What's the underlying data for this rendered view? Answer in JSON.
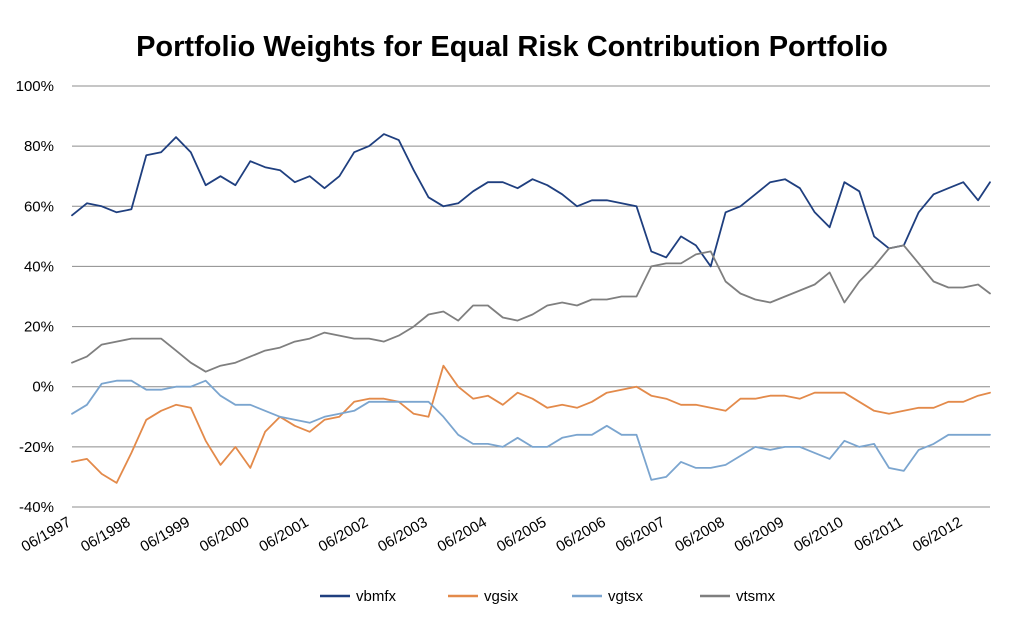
{
  "chart_data": {
    "type": "line",
    "title": "Portfolio Weights for Equal Risk Contribution Portfolio",
    "xlabel": "",
    "ylabel": "",
    "ylim": [
      -40,
      100
    ],
    "ytick_values": [
      -40,
      -20,
      0,
      20,
      40,
      60,
      80,
      100
    ],
    "ytick_labels": [
      "-40%",
      "-20%",
      "0%",
      "20%",
      "40%",
      "60%",
      "80%",
      "100%"
    ],
    "xlim": [
      1997.5,
      2012.95
    ],
    "xtick_values": [
      1997.5,
      1998.5,
      1999.5,
      2000.5,
      2001.5,
      2002.5,
      2003.5,
      2004.5,
      2005.5,
      2006.5,
      2007.5,
      2008.5,
      2009.5,
      2010.5,
      2011.5,
      2012.5
    ],
    "xtick_labels": [
      "06/1997",
      "06/1998",
      "06/1999",
      "06/2000",
      "06/2001",
      "06/2002",
      "06/2003",
      "06/2004",
      "06/2005",
      "06/2006",
      "06/2007",
      "06/2008",
      "06/2009",
      "06/2010",
      "06/2011",
      "06/2012"
    ],
    "grid": true,
    "legend_position": "bottom",
    "x": [
      1997.5,
      1997.75,
      1998.0,
      1998.25,
      1998.5,
      1998.75,
      1999.0,
      1999.25,
      1999.5,
      1999.75,
      2000.0,
      2000.25,
      2000.5,
      2000.75,
      2001.0,
      2001.25,
      2001.5,
      2001.75,
      2002.0,
      2002.25,
      2002.5,
      2002.75,
      2003.0,
      2003.25,
      2003.5,
      2003.75,
      2004.0,
      2004.25,
      2004.5,
      2004.75,
      2005.0,
      2005.25,
      2005.5,
      2005.75,
      2006.0,
      2006.25,
      2006.5,
      2006.75,
      2007.0,
      2007.25,
      2007.5,
      2007.75,
      2008.0,
      2008.25,
      2008.5,
      2008.75,
      2009.0,
      2009.25,
      2009.5,
      2009.75,
      2010.0,
      2010.25,
      2010.5,
      2010.75,
      2011.0,
      2011.25,
      2011.5,
      2011.75,
      2012.0,
      2012.25,
      2012.5,
      2012.75,
      2012.95
    ],
    "series": [
      {
        "name": "vbmfx",
        "color": "#1f3f7f",
        "values": [
          57,
          61,
          60,
          58,
          59,
          77,
          78,
          83,
          78,
          67,
          70,
          67,
          75,
          73,
          72,
          68,
          70,
          66,
          70,
          78,
          80,
          84,
          82,
          72,
          63,
          60,
          61,
          65,
          68,
          68,
          66,
          69,
          67,
          64,
          60,
          62,
          62,
          61,
          60,
          45,
          43,
          50,
          47,
          40,
          58,
          60,
          64,
          68,
          69,
          66,
          58,
          53,
          68,
          65,
          50,
          46,
          47,
          58,
          64,
          66,
          68,
          62,
          68
        ]
      },
      {
        "name": "vgsix",
        "color": "#e38a4a",
        "values": [
          -25,
          -24,
          -29,
          -32,
          -22,
          -11,
          -8,
          -6,
          -7,
          -18,
          -26,
          -20,
          -27,
          -15,
          -10,
          -13,
          -15,
          -11,
          -10,
          -5,
          -4,
          -4,
          -5,
          -9,
          -10,
          7,
          0,
          -4,
          -3,
          -6,
          -2,
          -4,
          -7,
          -6,
          -7,
          -5,
          -2,
          -1,
          0,
          -3,
          -4,
          -6,
          -6,
          -7,
          -8,
          -4,
          -4,
          -3,
          -3,
          -4,
          -2,
          -2,
          -2,
          -5,
          -8,
          -9,
          -8,
          -7,
          -7,
          -5,
          -5,
          -3,
          -2
        ]
      },
      {
        "name": "vgtsx",
        "color": "#7ba5cf",
        "values": [
          -9,
          -6,
          1,
          2,
          2,
          -1,
          -1,
          0,
          0,
          2,
          -3,
          -6,
          -6,
          -8,
          -10,
          -11,
          -12,
          -10,
          -9,
          -8,
          -5,
          -5,
          -5,
          -5,
          -5,
          -10,
          -16,
          -19,
          -19,
          -20,
          -17,
          -20,
          -20,
          -17,
          -16,
          -16,
          -13,
          -16,
          -16,
          -31,
          -30,
          -25,
          -27,
          -27,
          -26,
          -23,
          -20,
          -21,
          -20,
          -20,
          -22,
          -24,
          -18,
          -20,
          -19,
          -27,
          -28,
          -21,
          -19,
          -16,
          -16,
          -16,
          -16
        ]
      },
      {
        "name": "vtsmx",
        "color": "#7f7f7f",
        "values": [
          8,
          10,
          14,
          15,
          16,
          16,
          16,
          12,
          8,
          5,
          7,
          8,
          10,
          12,
          13,
          15,
          16,
          18,
          17,
          16,
          16,
          15,
          17,
          20,
          24,
          25,
          22,
          27,
          27,
          23,
          22,
          24,
          27,
          28,
          27,
          29,
          29,
          30,
          30,
          40,
          41,
          41,
          44,
          45,
          35,
          31,
          29,
          28,
          30,
          32,
          34,
          38,
          28,
          35,
          40,
          46,
          47,
          41,
          35,
          33,
          33,
          34,
          31
        ]
      }
    ]
  }
}
